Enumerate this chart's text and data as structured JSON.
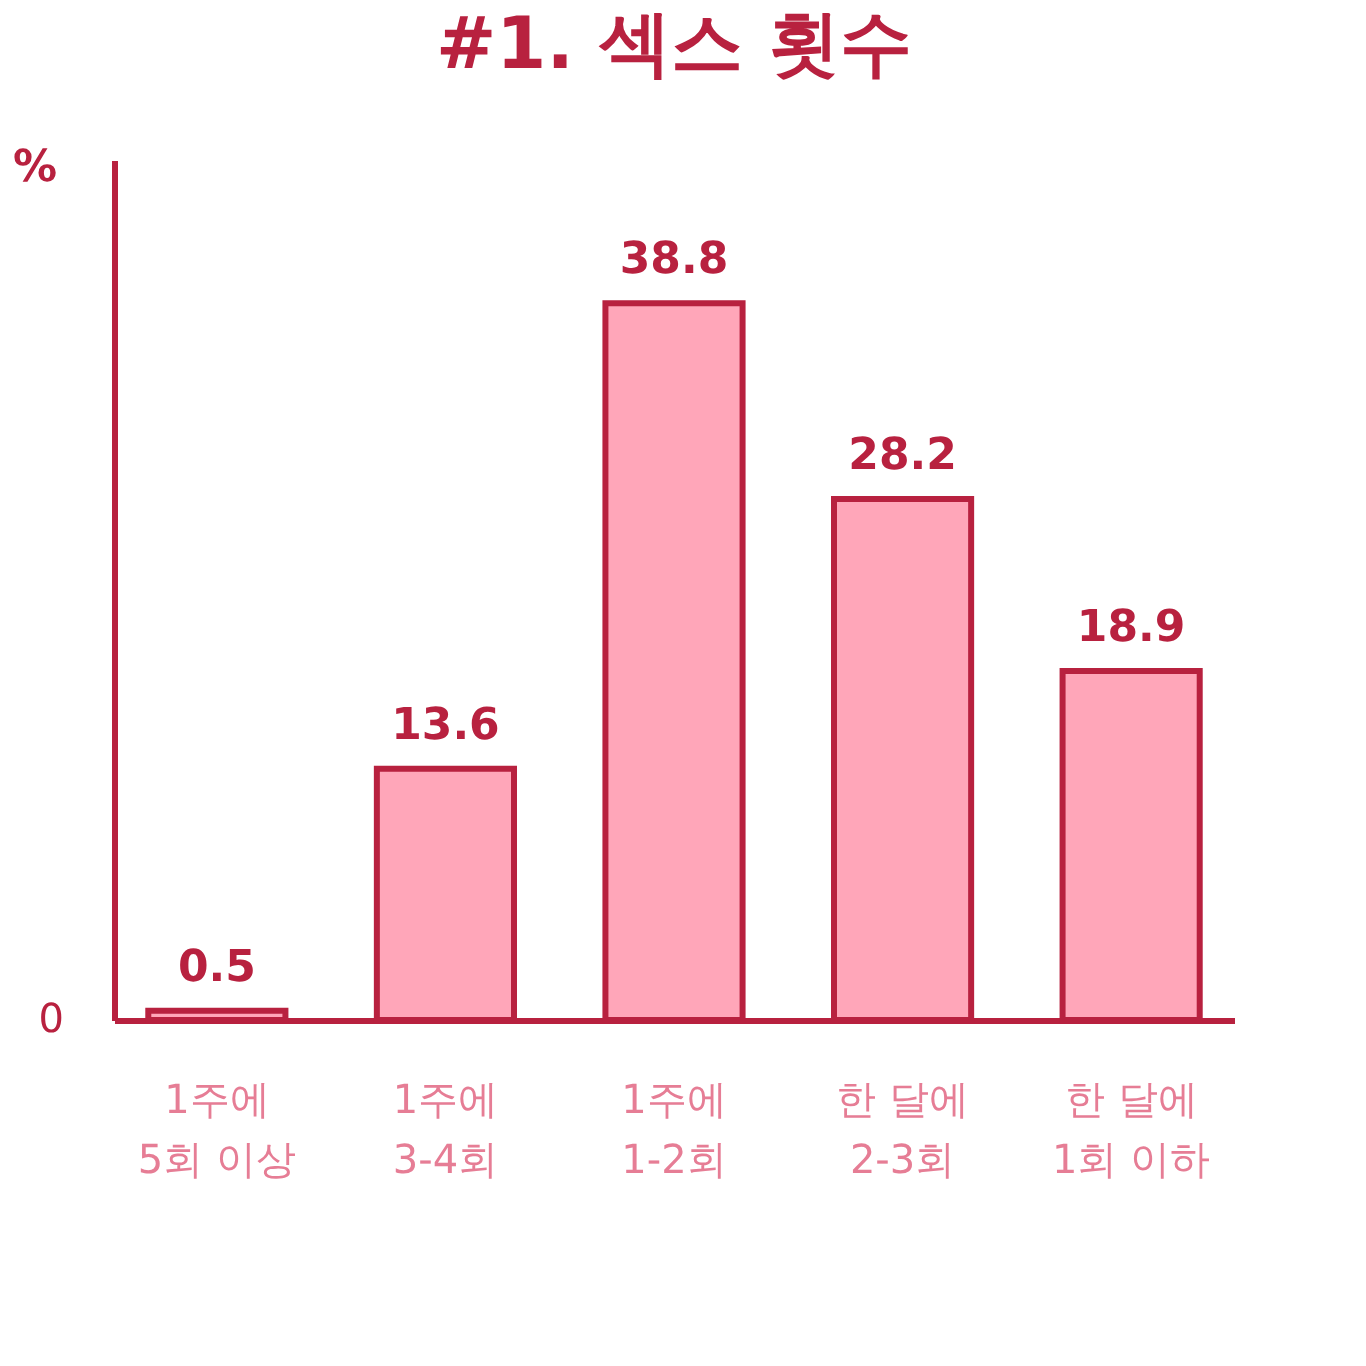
{
  "chart_data": {
    "type": "bar",
    "title": "#1. 섹스 횟수",
    "ylabel": "%",
    "categories": [
      "1주에\n5회 이상",
      "1주에\n3-4회",
      "1주에\n1-2회",
      "한 달에\n2-3회",
      "한 달에\n1회 이하"
    ],
    "values": [
      0.5,
      13.6,
      38.8,
      28.2,
      18.9
    ],
    "color": "#ffa6b9",
    "annotations": [
      "0"
    ],
    "grid": false,
    "data_labels": true
  }
}
